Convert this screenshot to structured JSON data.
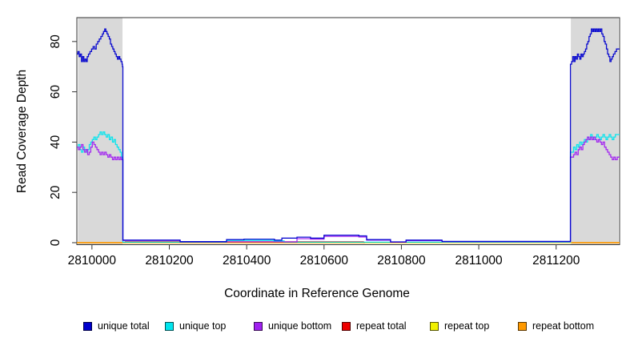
{
  "chart_data": {
    "type": "line",
    "subtype": "step-coverage-plot",
    "title": "",
    "xlabel": "Coordinate in Reference Genome",
    "ylabel": "Read Coverage Depth",
    "x_ticks": [
      2810000,
      2810200,
      2810400,
      2810600,
      2810800,
      2811000,
      2811200
    ],
    "y_ticks": [
      0,
      20,
      40,
      60,
      80
    ],
    "xlim": [
      2809961,
      2811364
    ],
    "ylim": [
      -0.8,
      89.5
    ],
    "grid": false,
    "legend_position": "bottom",
    "shade_color": "#D9D9D9",
    "shaded_regions": [
      {
        "x0": 2809964,
        "x1": 2810079
      },
      {
        "x0": 2811238,
        "x1": 2811361
      }
    ],
    "series": [
      {
        "name": "unique total",
        "color": "#0000CD",
        "width": 1.3,
        "segments": [
          [
            [
              2809961,
              75
            ],
            [
              2809964,
              76
            ],
            [
              2809967,
              74
            ],
            [
              2809970,
              75
            ],
            [
              2809973,
              72
            ],
            [
              2809976,
              74
            ],
            [
              2809979,
              72
            ],
            [
              2809982,
              73
            ],
            [
              2809985,
              72
            ],
            [
              2809988,
              74
            ],
            [
              2809991,
              75
            ],
            [
              2809995,
              76
            ],
            [
              2809999,
              77
            ],
            [
              2810003,
              78
            ],
            [
              2810007,
              77
            ],
            [
              2810011,
              79
            ],
            [
              2810015,
              80
            ],
            [
              2810019,
              81
            ],
            [
              2810023,
              82
            ],
            [
              2810027,
              83
            ],
            [
              2810030,
              84
            ],
            [
              2810033,
              85
            ],
            [
              2810036,
              84
            ],
            [
              2810039,
              83
            ],
            [
              2810042,
              82
            ],
            [
              2810045,
              81
            ],
            [
              2810048,
              79
            ],
            [
              2810051,
              78
            ],
            [
              2810054,
              77
            ],
            [
              2810057,
              76
            ],
            [
              2810060,
              75
            ],
            [
              2810063,
              74
            ],
            [
              2810066,
              73
            ],
            [
              2810069,
              74
            ],
            [
              2810072,
              73
            ],
            [
              2810075,
              72
            ],
            [
              2810078,
              71
            ],
            [
              2810079,
              70
            ],
            [
              2810080,
              1
            ],
            [
              2810228,
              0.4
            ],
            [
              2810348,
              1.2
            ],
            [
              2810393,
              1.4
            ],
            [
              2810472,
              1
            ],
            [
              2810491,
              1.8
            ],
            [
              2810530,
              2.2
            ],
            [
              2810565,
              1.8
            ],
            [
              2810600,
              3
            ],
            [
              2810690,
              2.7
            ],
            [
              2810710,
              1.2
            ],
            [
              2810772,
              0.3
            ],
            [
              2810812,
              1
            ],
            [
              2810905,
              0.5
            ],
            [
              2811236,
              0.5
            ],
            [
              2811237,
              71
            ],
            [
              2811240,
              72
            ],
            [
              2811243,
              74
            ],
            [
              2811246,
              72
            ],
            [
              2811249,
              74
            ],
            [
              2811252,
              73
            ],
            [
              2811255,
              75
            ],
            [
              2811258,
              74
            ],
            [
              2811261,
              73
            ],
            [
              2811264,
              75
            ],
            [
              2811267,
              74
            ],
            [
              2811270,
              75
            ],
            [
              2811273,
              76
            ],
            [
              2811276,
              77
            ],
            [
              2811279,
              79
            ],
            [
              2811282,
              80
            ],
            [
              2811285,
              82
            ],
            [
              2811288,
              83
            ],
            [
              2811291,
              85
            ],
            [
              2811294,
              84
            ],
            [
              2811297,
              85
            ],
            [
              2811300,
              84
            ],
            [
              2811303,
              85
            ],
            [
              2811306,
              84
            ],
            [
              2811309,
              85
            ],
            [
              2811312,
              84
            ],
            [
              2811315,
              85
            ],
            [
              2811318,
              83
            ],
            [
              2811321,
              82
            ],
            [
              2811324,
              80
            ],
            [
              2811327,
              79
            ],
            [
              2811330,
              77
            ],
            [
              2811333,
              75
            ],
            [
              2811336,
              74
            ],
            [
              2811339,
              72
            ],
            [
              2811342,
              73
            ],
            [
              2811345,
              74
            ],
            [
              2811348,
              75
            ],
            [
              2811352,
              76
            ],
            [
              2811356,
              77
            ],
            [
              2811364,
              77
            ]
          ]
        ]
      },
      {
        "name": "unique top",
        "color": "#00E5EE",
        "width": 1.3,
        "segments": [
          [
            [
              2809961,
              38
            ],
            [
              2809965,
              39
            ],
            [
              2809969,
              37
            ],
            [
              2809973,
              36
            ],
            [
              2809977,
              38
            ],
            [
              2809981,
              37
            ],
            [
              2809985,
              36
            ],
            [
              2809989,
              37
            ],
            [
              2809993,
              39
            ],
            [
              2809997,
              40
            ],
            [
              2810001,
              41
            ],
            [
              2810005,
              42
            ],
            [
              2810009,
              41
            ],
            [
              2810013,
              42
            ],
            [
              2810017,
              43
            ],
            [
              2810021,
              44
            ],
            [
              2810025,
              43
            ],
            [
              2810029,
              44
            ],
            [
              2810033,
              43
            ],
            [
              2810037,
              42
            ],
            [
              2810041,
              43
            ],
            [
              2810045,
              41
            ],
            [
              2810049,
              42
            ],
            [
              2810053,
              40
            ],
            [
              2810057,
              41
            ],
            [
              2810061,
              39
            ],
            [
              2810065,
              38
            ],
            [
              2810069,
              37
            ],
            [
              2810073,
              36
            ],
            [
              2810076,
              34
            ],
            [
              2810079,
              33
            ],
            [
              2810080,
              0.2
            ],
            [
              2810348,
              0.9
            ],
            [
              2810470,
              0.7
            ],
            [
              2810497,
              0.2
            ],
            [
              2811236,
              0.2
            ],
            [
              2811237,
              36
            ],
            [
              2811241,
              36
            ],
            [
              2811245,
              38
            ],
            [
              2811249,
              37
            ],
            [
              2811253,
              39
            ],
            [
              2811257,
              38
            ],
            [
              2811261,
              40
            ],
            [
              2811265,
              39
            ],
            [
              2811269,
              40
            ],
            [
              2811273,
              41
            ],
            [
              2811277,
              40
            ],
            [
              2811281,
              42
            ],
            [
              2811285,
              41
            ],
            [
              2811289,
              43
            ],
            [
              2811293,
              42
            ],
            [
              2811297,
              41
            ],
            [
              2811301,
              42
            ],
            [
              2811305,
              43
            ],
            [
              2811309,
              42
            ],
            [
              2811313,
              41
            ],
            [
              2811317,
              42
            ],
            [
              2811321,
              43
            ],
            [
              2811325,
              42
            ],
            [
              2811329,
              41
            ],
            [
              2811333,
              42
            ],
            [
              2811337,
              43
            ],
            [
              2811341,
              42
            ],
            [
              2811345,
              41
            ],
            [
              2811349,
              42
            ],
            [
              2811353,
              43
            ],
            [
              2811364,
              43
            ]
          ]
        ]
      },
      {
        "name": "unique bottom",
        "color": "#A020F0",
        "width": 1.3,
        "segments": [
          [
            [
              2809961,
              38
            ],
            [
              2809965,
              37
            ],
            [
              2809969,
              38
            ],
            [
              2809973,
              39
            ],
            [
              2809977,
              37
            ],
            [
              2809981,
              36
            ],
            [
              2809985,
              37
            ],
            [
              2809989,
              35
            ],
            [
              2809993,
              36
            ],
            [
              2809997,
              38
            ],
            [
              2810001,
              40
            ],
            [
              2810005,
              39
            ],
            [
              2810009,
              38
            ],
            [
              2810013,
              37
            ],
            [
              2810017,
              36
            ],
            [
              2810021,
              35
            ],
            [
              2810025,
              36
            ],
            [
              2810029,
              35
            ],
            [
              2810033,
              36
            ],
            [
              2810037,
              35
            ],
            [
              2810041,
              34
            ],
            [
              2810045,
              35
            ],
            [
              2810049,
              34
            ],
            [
              2810053,
              33
            ],
            [
              2810057,
              34
            ],
            [
              2810061,
              33
            ],
            [
              2810065,
              34
            ],
            [
              2810069,
              33
            ],
            [
              2810073,
              34
            ],
            [
              2810076,
              33
            ],
            [
              2810079,
              33
            ],
            [
              2810080,
              0.9
            ],
            [
              2810228,
              0.3
            ],
            [
              2810491,
              0.3
            ],
            [
              2810530,
              1.6
            ],
            [
              2810565,
              1.4
            ],
            [
              2810600,
              2.5
            ],
            [
              2810690,
              2.3
            ],
            [
              2810710,
              1
            ],
            [
              2810772,
              0.2
            ],
            [
              2810812,
              0.8
            ],
            [
              2810905,
              0.4
            ],
            [
              2811236,
              0.4
            ],
            [
              2811237,
              34
            ],
            [
              2811241,
              34
            ],
            [
              2811245,
              35
            ],
            [
              2811249,
              36
            ],
            [
              2811253,
              35
            ],
            [
              2811257,
              37
            ],
            [
              2811261,
              38
            ],
            [
              2811265,
              37
            ],
            [
              2811269,
              39
            ],
            [
              2811273,
              40
            ],
            [
              2811277,
              41
            ],
            [
              2811281,
              42
            ],
            [
              2811285,
              41
            ],
            [
              2811289,
              42
            ],
            [
              2811293,
              41
            ],
            [
              2811297,
              42
            ],
            [
              2811301,
              41
            ],
            [
              2811305,
              40
            ],
            [
              2811309,
              41
            ],
            [
              2811313,
              40
            ],
            [
              2811317,
              39
            ],
            [
              2811321,
              40
            ],
            [
              2811325,
              38
            ],
            [
              2811329,
              37
            ],
            [
              2811333,
              36
            ],
            [
              2811337,
              35
            ],
            [
              2811341,
              34
            ],
            [
              2811345,
              33
            ],
            [
              2811349,
              34
            ],
            [
              2811353,
              33
            ],
            [
              2811358,
              34
            ],
            [
              2811364,
              34
            ]
          ]
        ]
      },
      {
        "name": "repeat total",
        "color": "#EE0000",
        "width": 1.2,
        "segments": [
          [
            [
              2809961,
              0
            ],
            [
              2810085,
              0
            ],
            [
              2810086,
              0.35
            ],
            [
              2810700,
              0.35
            ],
            [
              2810702,
              0
            ],
            [
              2811364,
              0
            ]
          ]
        ]
      },
      {
        "name": "repeat top",
        "color": "#F0F000",
        "width": 1.2,
        "segments": [
          [
            [
              2809961,
              0
            ],
            [
              2811364,
              0
            ]
          ]
        ]
      },
      {
        "name": "repeat bottom",
        "color": "#FF9900",
        "width": 1.6,
        "segments": [
          [
            [
              2809961,
              0
            ],
            [
              2810706,
              0
            ]
          ],
          [
            [
              2811240,
              0
            ],
            [
              2811364,
              0
            ]
          ]
        ]
      }
    ]
  }
}
